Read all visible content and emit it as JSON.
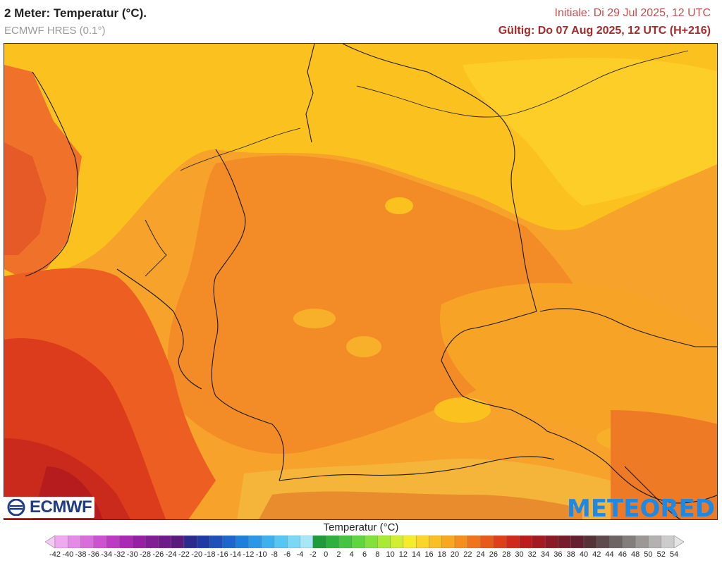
{
  "header": {
    "title": "2 Meter: Temperatur (°C).",
    "model": "ECMWF HRES (0.1°)",
    "initial": "Initiale: Di 29 Jul 2025, 12 UTC",
    "valid": "Gültig: Do 07 Aug 2025, 12 UTC (H+216)"
  },
  "logos": {
    "left": "ECMWF",
    "right": "METEORED"
  },
  "legend": {
    "title": "Temperatur (°C)",
    "ticks": [
      "-42",
      "-40",
      "-38",
      "-36",
      "-34",
      "-32",
      "-30",
      "-28",
      "-26",
      "-24",
      "-22",
      "-20",
      "-18",
      "-16",
      "-14",
      "-12",
      "-10",
      "-8",
      "-6",
      "-4",
      "-2",
      "0",
      "2",
      "4",
      "6",
      "8",
      "10",
      "12",
      "14",
      "16",
      "18",
      "20",
      "22",
      "24",
      "26",
      "28",
      "30",
      "32",
      "34",
      "36",
      "38",
      "40",
      "42",
      "44",
      "46",
      "48",
      "50",
      "52",
      "54"
    ],
    "colors": [
      "#f6c8f4",
      "#eea9ef",
      "#e48be6",
      "#d96edb",
      "#cc52cf",
      "#bd3ac2",
      "#ab28b4",
      "#9620a4",
      "#821d96",
      "#6e1c8a",
      "#5a1c7c",
      "#2b2a8f",
      "#1f3aa3",
      "#1f4fb8",
      "#1f66cc",
      "#1f7fdc",
      "#2a98e6",
      "#3db1ee",
      "#56c6f2",
      "#7bd8f4",
      "#a7e7f6",
      "#1f9a3c",
      "#2eb03e",
      "#44c440",
      "#5fd63f",
      "#82e23b",
      "#aaea37",
      "#d2ee33",
      "#f6ec2e",
      "#f9d629",
      "#f9bf24",
      "#f7a720",
      "#f48e1d",
      "#ef741b",
      "#e85a1a",
      "#de401a",
      "#cf2a1b",
      "#bd1c1e",
      "#a41a22",
      "#8c1a26",
      "#771c2a",
      "#642030",
      "#543238",
      "#5e4a4e",
      "#6e6466",
      "#837d7e",
      "#9b9797",
      "#b3b1b1",
      "#cdcccc",
      "#e4e4e4"
    ]
  }
}
